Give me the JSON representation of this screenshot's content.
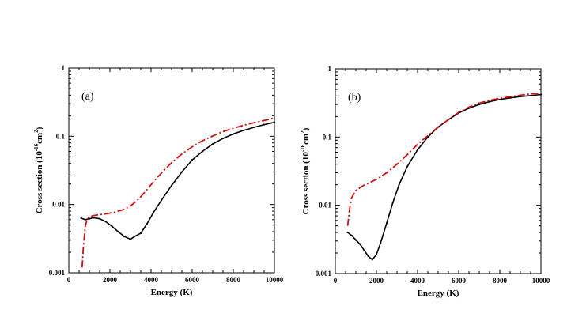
{
  "chart_data": [
    {
      "type": "line",
      "panel_label": "(a)",
      "xlabel": "Energy (K)",
      "ylabel": "Cross section (10",
      "ylabel_exp": "-16",
      "ylabel_tail": "cm",
      "ylabel_exp2": "2",
      "ylabel_close": ")",
      "xlim": [
        0,
        10000
      ],
      "ylim": [
        0.001,
        1
      ],
      "yscale": "log",
      "xticks": [
        0,
        2000,
        4000,
        6000,
        8000,
        10000
      ],
      "yticks": [
        0.001,
        0.01,
        0.1,
        1
      ],
      "ytick_labels": [
        "0.001",
        "0.01",
        "0.1",
        "1"
      ],
      "series": [
        {
          "name": "solid",
          "color": "#000000",
          "style": "solid",
          "x": [
            600,
            800,
            1000,
            1200,
            1500,
            1800,
            2100,
            2400,
            2700,
            3000,
            3200,
            3500,
            3800,
            4100,
            4500,
            5000,
            5500,
            6000,
            6500,
            7000,
            7500,
            8000,
            8500,
            9000,
            9500,
            10000
          ],
          "y": [
            0.0063,
            0.006,
            0.0062,
            0.0064,
            0.0062,
            0.0056,
            0.0048,
            0.004,
            0.0034,
            0.0031,
            0.0034,
            0.0038,
            0.0052,
            0.0075,
            0.0115,
            0.019,
            0.03,
            0.045,
            0.06,
            0.077,
            0.093,
            0.108,
            0.122,
            0.135,
            0.148,
            0.16
          ]
        },
        {
          "name": "dash-dot",
          "color": "#d01010",
          "style": "dashdot",
          "x": [
            650,
            700,
            800,
            900,
            1000,
            1200,
            1500,
            1800,
            2200,
            2600,
            3000,
            3400,
            3800,
            4200,
            4600,
            5000,
            5500,
            6000,
            6500,
            7000,
            7500,
            8000,
            8500,
            9000,
            9500,
            10000
          ],
          "y": [
            0.0012,
            0.0022,
            0.0048,
            0.0062,
            0.0066,
            0.0069,
            0.0071,
            0.0073,
            0.0077,
            0.0083,
            0.0095,
            0.012,
            0.0165,
            0.023,
            0.031,
            0.041,
            0.055,
            0.07,
            0.086,
            0.101,
            0.117,
            0.131,
            0.145,
            0.158,
            0.17,
            0.185
          ]
        }
      ]
    },
    {
      "type": "line",
      "panel_label": "(b)",
      "xlabel": "Energy (K)",
      "ylabel": "Cross section (10",
      "ylabel_exp": "-16",
      "ylabel_tail": "cm",
      "ylabel_exp2": "2",
      "ylabel_close": ")",
      "xlim": [
        0,
        10000
      ],
      "ylim": [
        0.001,
        1
      ],
      "yscale": "log",
      "xticks": [
        0,
        2000,
        4000,
        6000,
        8000,
        10000
      ],
      "yticks": [
        0.001,
        0.01,
        0.1,
        1
      ],
      "ytick_labels": [
        "0.001",
        "0.01",
        "0.1",
        "1"
      ],
      "series": [
        {
          "name": "solid",
          "color": "#000000",
          "style": "solid",
          "x": [
            600,
            800,
            1000,
            1200,
            1400,
            1600,
            1800,
            2000,
            2200,
            2500,
            2800,
            3100,
            3500,
            4000,
            4500,
            5000,
            5500,
            6000,
            6500,
            7000,
            7500,
            8000,
            8500,
            9000,
            9500,
            10000
          ],
          "y": [
            0.004,
            0.0036,
            0.0031,
            0.0027,
            0.0022,
            0.0018,
            0.0016,
            0.0019,
            0.0028,
            0.0055,
            0.011,
            0.02,
            0.037,
            0.065,
            0.1,
            0.14,
            0.18,
            0.225,
            0.265,
            0.3,
            0.33,
            0.355,
            0.375,
            0.392,
            0.405,
            0.42
          ]
        },
        {
          "name": "dash-dot",
          "color": "#d01010",
          "style": "dashdot",
          "x": [
            600,
            700,
            800,
            1000,
            1300,
            1600,
            2000,
            2500,
            3000,
            3500,
            4000,
            4500,
            5000,
            5500,
            6000,
            6500,
            7000,
            7500,
            8000,
            8500,
            9000,
            9500,
            10000
          ],
          "y": [
            0.005,
            0.009,
            0.013,
            0.0165,
            0.019,
            0.021,
            0.024,
            0.03,
            0.04,
            0.055,
            0.078,
            0.105,
            0.14,
            0.18,
            0.23,
            0.275,
            0.315,
            0.345,
            0.37,
            0.39,
            0.41,
            0.43,
            0.44
          ]
        }
      ]
    }
  ]
}
